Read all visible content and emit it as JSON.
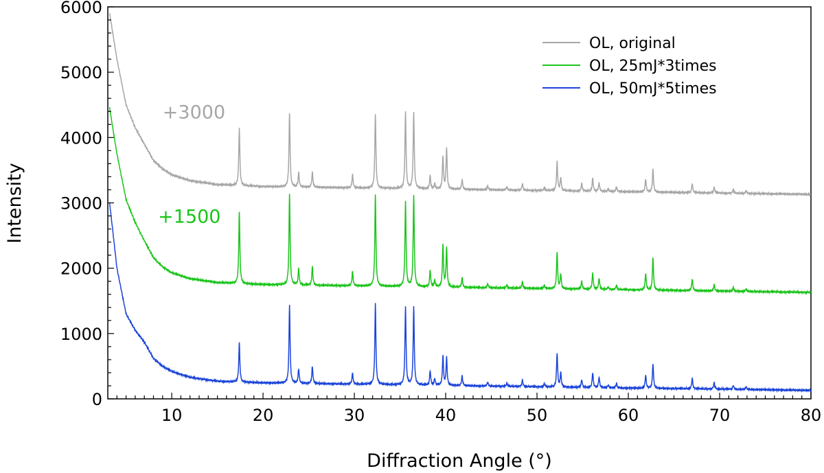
{
  "chart_data": {
    "type": "line",
    "title": "",
    "xlabel": "Diffraction Angle (°)",
    "ylabel": "Intensity",
    "xlim": [
      3,
      80
    ],
    "ylim": [
      0,
      6000
    ],
    "xticks": [
      10,
      20,
      30,
      40,
      50,
      60,
      70,
      80
    ],
    "yticks": [
      0,
      1000,
      2000,
      3000,
      4000,
      5000,
      6000
    ],
    "grid": false,
    "legend_position": "top-right",
    "series": [
      {
        "name": "OL, original",
        "color": "#a6a6a6",
        "offset": 3000,
        "baseline": [
          [
            3.2,
            2900
          ],
          [
            4,
            2200
          ],
          [
            5,
            1500
          ],
          [
            6,
            1150
          ],
          [
            7,
            900
          ],
          [
            8,
            650
          ],
          [
            9,
            520
          ],
          [
            10,
            430
          ],
          [
            12,
            340
          ],
          [
            15,
            280
          ],
          [
            20,
            250
          ],
          [
            30,
            230
          ],
          [
            40,
            210
          ],
          [
            50,
            190
          ],
          [
            60,
            170
          ],
          [
            70,
            150
          ],
          [
            80,
            130
          ]
        ],
        "peaks": [
          [
            17.4,
            880
          ],
          [
            22.9,
            1120
          ],
          [
            23.9,
            220
          ],
          [
            25.4,
            230
          ],
          [
            29.8,
            200
          ],
          [
            32.3,
            1140
          ],
          [
            35.6,
            1170
          ],
          [
            36.5,
            1170
          ],
          [
            38.3,
            200
          ],
          [
            38.8,
            80
          ],
          [
            39.7,
            500
          ],
          [
            40.1,
            630
          ],
          [
            41.8,
            150
          ],
          [
            44.6,
            60
          ],
          [
            46.7,
            50
          ],
          [
            48.4,
            100
          ],
          [
            50.8,
            50
          ],
          [
            52.2,
            440
          ],
          [
            52.6,
            200
          ],
          [
            54.9,
            120
          ],
          [
            56.1,
            200
          ],
          [
            56.8,
            130
          ],
          [
            57.8,
            40
          ],
          [
            58.7,
            70
          ],
          [
            61.9,
            200
          ],
          [
            62.7,
            350
          ],
          [
            67.0,
            140
          ],
          [
            69.4,
            90
          ],
          [
            71.5,
            60
          ],
          [
            72.9,
            40
          ]
        ]
      },
      {
        "name": "OL, 25mJ*3times",
        "color": "#1ac41a",
        "offset": 1500,
        "baseline": [
          [
            3.2,
            2950
          ],
          [
            4,
            2250
          ],
          [
            5,
            1550
          ],
          [
            6,
            1200
          ],
          [
            7,
            920
          ],
          [
            8,
            660
          ],
          [
            9,
            520
          ],
          [
            10,
            430
          ],
          [
            12,
            340
          ],
          [
            15,
            280
          ],
          [
            20,
            250
          ],
          [
            30,
            230
          ],
          [
            40,
            210
          ],
          [
            50,
            190
          ],
          [
            60,
            170
          ],
          [
            70,
            150
          ],
          [
            80,
            130
          ]
        ],
        "peaks": [
          [
            17.4,
            1100
          ],
          [
            22.9,
            1400
          ],
          [
            23.9,
            250
          ],
          [
            25.4,
            280
          ],
          [
            29.8,
            220
          ],
          [
            32.3,
            1400
          ],
          [
            35.6,
            1300
          ],
          [
            36.5,
            1400
          ],
          [
            38.3,
            250
          ],
          [
            38.8,
            100
          ],
          [
            39.7,
            650
          ],
          [
            40.1,
            600
          ],
          [
            41.8,
            150
          ],
          [
            44.6,
            60
          ],
          [
            46.7,
            50
          ],
          [
            48.4,
            100
          ],
          [
            50.8,
            50
          ],
          [
            52.2,
            560
          ],
          [
            52.6,
            220
          ],
          [
            54.9,
            120
          ],
          [
            56.1,
            250
          ],
          [
            56.8,
            170
          ],
          [
            57.8,
            40
          ],
          [
            58.7,
            70
          ],
          [
            61.9,
            250
          ],
          [
            62.7,
            500
          ],
          [
            67.0,
            180
          ],
          [
            69.4,
            100
          ],
          [
            71.5,
            60
          ],
          [
            72.9,
            40
          ]
        ]
      },
      {
        "name": "OL, 50mJ*5times",
        "color": "#1a44d8",
        "offset": 0,
        "baseline": [
          [
            3.2,
            3000
          ],
          [
            4,
            2000
          ],
          [
            5,
            1300
          ],
          [
            6,
            1050
          ],
          [
            7,
            870
          ],
          [
            8,
            620
          ],
          [
            9,
            500
          ],
          [
            10,
            420
          ],
          [
            12,
            330
          ],
          [
            15,
            270
          ],
          [
            20,
            245
          ],
          [
            30,
            225
          ],
          [
            40,
            205
          ],
          [
            50,
            185
          ],
          [
            60,
            165
          ],
          [
            70,
            150
          ],
          [
            80,
            130
          ]
        ],
        "peaks": [
          [
            17.4,
            600
          ],
          [
            22.9,
            1200
          ],
          [
            23.9,
            220
          ],
          [
            25.4,
            260
          ],
          [
            29.8,
            170
          ],
          [
            32.3,
            1230
          ],
          [
            35.6,
            1200
          ],
          [
            36.5,
            1200
          ],
          [
            38.3,
            220
          ],
          [
            38.8,
            100
          ],
          [
            39.7,
            450
          ],
          [
            40.1,
            420
          ],
          [
            41.8,
            150
          ],
          [
            44.6,
            60
          ],
          [
            46.7,
            50
          ],
          [
            48.4,
            100
          ],
          [
            50.8,
            50
          ],
          [
            52.2,
            520
          ],
          [
            52.6,
            220
          ],
          [
            54.9,
            120
          ],
          [
            56.1,
            230
          ],
          [
            56.8,
            160
          ],
          [
            57.8,
            40
          ],
          [
            58.7,
            70
          ],
          [
            61.9,
            200
          ],
          [
            62.7,
            380
          ],
          [
            67.0,
            160
          ],
          [
            69.4,
            100
          ],
          [
            71.5,
            60
          ],
          [
            72.9,
            40
          ]
        ]
      }
    ],
    "annotations": [
      {
        "text": "+3000",
        "color": "#a6a6a6",
        "x": 9.0,
        "y": 4400
      },
      {
        "text": "+1500",
        "color": "#1ac41a",
        "x": 8.5,
        "y": 2800
      }
    ]
  }
}
